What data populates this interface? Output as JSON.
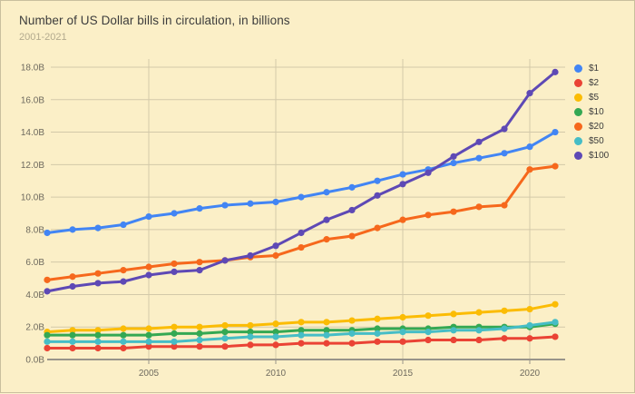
{
  "header": {
    "title": "Number of US Dollar bills in circulation, in billions",
    "subtitle": "2001-2021"
  },
  "colors": {
    "background": "#FBEFC7",
    "gridline": "#d3c9a9",
    "axis_line": "#98948a",
    "axis_label": "#6e6a5e",
    "title_text": "#3c3c3c",
    "subtitle_text": "#b3aa8e"
  },
  "chart_data": {
    "type": "line",
    "title": "Number of US Dollar bills in circulation, in billions",
    "subtitle": "2001-2021",
    "xlabel": "",
    "ylabel": "",
    "x": [
      2001,
      2002,
      2003,
      2004,
      2005,
      2006,
      2007,
      2008,
      2009,
      2010,
      2011,
      2012,
      2013,
      2014,
      2015,
      2016,
      2017,
      2018,
      2019,
      2020,
      2021
    ],
    "series": [
      {
        "name": "$1",
        "color": "#4285F4",
        "values": [
          7.8,
          8.0,
          8.1,
          8.3,
          8.8,
          9.0,
          9.3,
          9.5,
          9.6,
          9.7,
          10.0,
          10.3,
          10.6,
          11.0,
          11.4,
          11.7,
          12.1,
          12.4,
          12.7,
          13.1,
          14.0
        ]
      },
      {
        "name": "$2",
        "color": "#EA4335",
        "values": [
          0.7,
          0.7,
          0.7,
          0.7,
          0.8,
          0.8,
          0.8,
          0.8,
          0.9,
          0.9,
          1.0,
          1.0,
          1.0,
          1.1,
          1.1,
          1.2,
          1.2,
          1.2,
          1.3,
          1.3,
          1.4
        ]
      },
      {
        "name": "$5",
        "color": "#FBBC04",
        "values": [
          1.7,
          1.8,
          1.8,
          1.9,
          1.9,
          2.0,
          2.0,
          2.1,
          2.1,
          2.2,
          2.3,
          2.3,
          2.4,
          2.5,
          2.6,
          2.7,
          2.8,
          2.9,
          3.0,
          3.1,
          3.4
        ]
      },
      {
        "name": "$10",
        "color": "#34A853",
        "values": [
          1.5,
          1.5,
          1.5,
          1.5,
          1.5,
          1.6,
          1.6,
          1.7,
          1.7,
          1.7,
          1.8,
          1.8,
          1.8,
          1.9,
          1.9,
          1.9,
          2.0,
          2.0,
          2.0,
          2.0,
          2.2
        ]
      },
      {
        "name": "$20",
        "color": "#F6681C",
        "values": [
          4.9,
          5.1,
          5.3,
          5.5,
          5.7,
          5.9,
          6.0,
          6.1,
          6.3,
          6.4,
          6.9,
          7.4,
          7.6,
          8.1,
          8.6,
          8.9,
          9.1,
          9.4,
          9.5,
          11.7,
          11.9
        ]
      },
      {
        "name": "$50",
        "color": "#46BDC6",
        "values": [
          1.1,
          1.1,
          1.1,
          1.1,
          1.1,
          1.1,
          1.2,
          1.3,
          1.4,
          1.4,
          1.5,
          1.5,
          1.6,
          1.6,
          1.7,
          1.7,
          1.8,
          1.8,
          1.9,
          2.1,
          2.3
        ]
      },
      {
        "name": "$100",
        "color": "#5E49B5",
        "values": [
          4.2,
          4.5,
          4.7,
          4.8,
          5.2,
          5.4,
          5.5,
          6.1,
          6.4,
          7.0,
          7.8,
          8.6,
          9.2,
          10.1,
          10.8,
          11.5,
          12.5,
          13.4,
          14.2,
          16.4,
          17.7
        ]
      }
    ],
    "ylim": [
      0,
      18
    ],
    "y_tick_labels": [
      "0.0B",
      "2.0B",
      "4.0B",
      "6.0B",
      "8.0B",
      "10.0B",
      "12.0B",
      "14.0B",
      "16.0B",
      "18.0B"
    ],
    "x_tick_years": [
      2005,
      2010,
      2015,
      2020
    ],
    "x_tick_labels": [
      "2005",
      "2010",
      "2015",
      "2020"
    ],
    "grid": true,
    "legend_position": "right"
  }
}
